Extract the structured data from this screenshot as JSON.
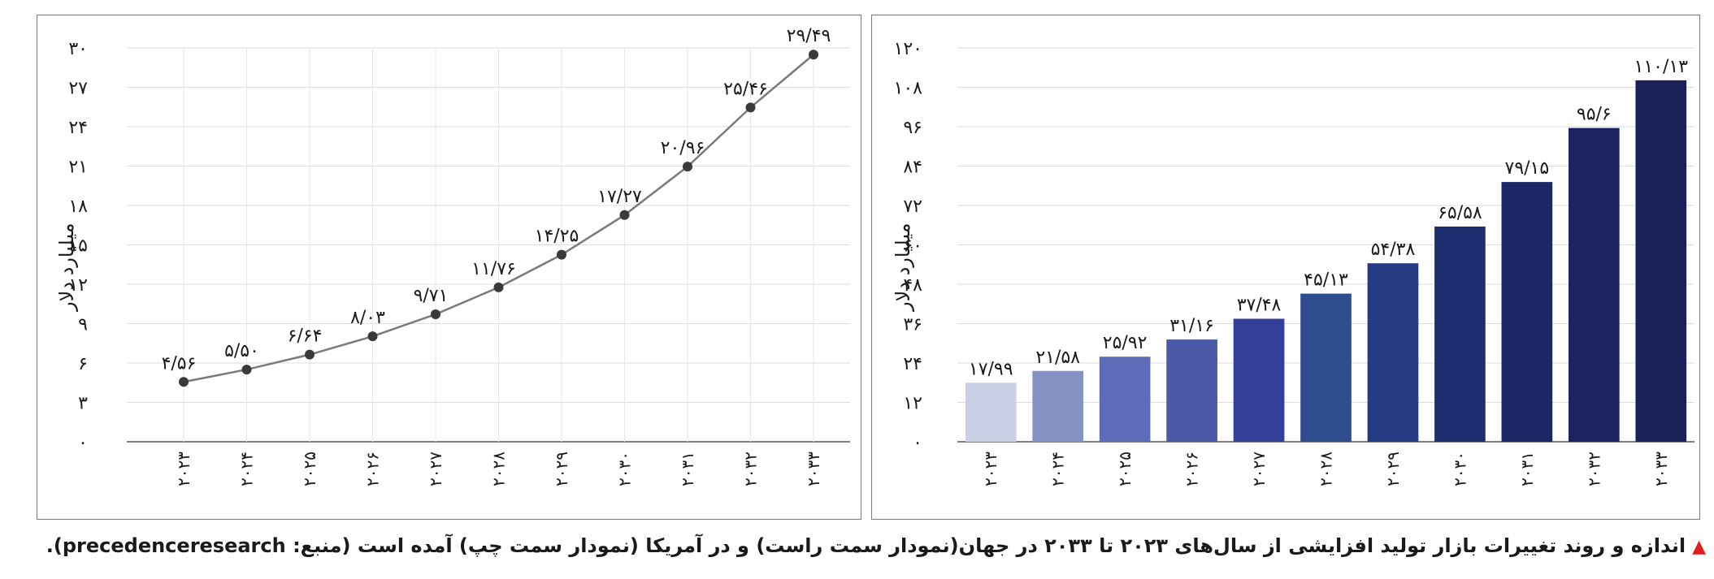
{
  "caption": {
    "marker_color": "#e01e1e",
    "text": "اندازه و روند تغییرات بازار تولید افزایشی از سال‌های ۲۰۲۳ تا ۲۰۳۳ در جهان(نمودار سمت راست) و در آمریکا (نمودار سمت چپ) آمده است (منبع: precedenceresearch)."
  },
  "chart_data": [
    {
      "type": "line",
      "region": "left",
      "ylabel": "میلیارد دلار",
      "xlabel": "",
      "categories": [
        "۲۰۲۳",
        "۲۰۲۴",
        "۲۰۲۵",
        "۲۰۲۶",
        "۲۰۲۷",
        "۲۰۲۸",
        "۲۰۲۹",
        "۲۰۳۰",
        "۲۰۳۱",
        "۲۰۳۲",
        "۲۰۳۳"
      ],
      "values": [
        4.56,
        5.5,
        6.64,
        8.03,
        9.71,
        11.76,
        14.25,
        17.27,
        20.96,
        25.46,
        29.49
      ],
      "data_labels": [
        "۴/۵۶",
        "۵/۵۰",
        "۶/۶۴",
        "۸/۰۳",
        "۹/۷۱",
        "۱۱/۷۶",
        "۱۴/۲۵",
        "۱۷/۲۷",
        "۲۰/۹۶",
        "۲۵/۴۶",
        "۲۹/۴۹"
      ],
      "yticks": [
        0,
        3,
        6,
        9,
        12,
        15,
        18,
        21,
        24,
        27,
        30
      ],
      "ytick_labels": [
        "۰",
        "۳",
        "۶",
        "۹",
        "۱۲",
        "۱۵",
        "۱۸",
        "۲۱",
        "۲۴",
        "۲۷",
        "۳۰"
      ],
      "ylim": [
        0,
        30
      ],
      "grid": true,
      "line_color": "#7a7a7a",
      "marker_color": "#3a3a3a"
    },
    {
      "type": "bar",
      "region": "right",
      "ylabel": "میلیارد دلار",
      "xlabel": "",
      "categories": [
        "۲۰۲۳",
        "۲۰۲۴",
        "۲۰۲۵",
        "۲۰۲۶",
        "۲۰۲۷",
        "۲۰۲۸",
        "۲۰۲۹",
        "۲۰۳۰",
        "۲۰۳۱",
        "۲۰۳۲",
        "۲۰۳۳"
      ],
      "values": [
        17.99,
        21.58,
        25.92,
        31.16,
        37.48,
        45.13,
        54.38,
        65.58,
        79.15,
        95.6,
        110.13
      ],
      "data_labels": [
        "۱۷/۹۹",
        "۲۱/۵۸",
        "۲۵/۹۲",
        "۳۱/۱۶",
        "۳۷/۴۸",
        "۴۵/۱۳",
        "۵۴/۳۸",
        "۶۵/۵۸",
        "۷۹/۱۵",
        "۹۵/۶",
        "۱۱۰/۱۳"
      ],
      "yticks": [
        0,
        12,
        24,
        36,
        48,
        60,
        72,
        84,
        96,
        108,
        120
      ],
      "ytick_labels": [
        "۰",
        "۱۲",
        "۲۴",
        "۳۶",
        "۴۸",
        "۶۰",
        "۷۲",
        "۸۴",
        "۹۶",
        "۱۰۸",
        "۱۲۰"
      ],
      "ylim": [
        0,
        120
      ],
      "grid": true,
      "bar_colors": [
        "#c9d0e6",
        "#8593c4",
        "#5d6cb8",
        "#4a5aa6",
        "#333f98",
        "#2e4d8e",
        "#243a82",
        "#1f2e70",
        "#1c2766",
        "#1c2360",
        "#1b2058"
      ]
    }
  ]
}
